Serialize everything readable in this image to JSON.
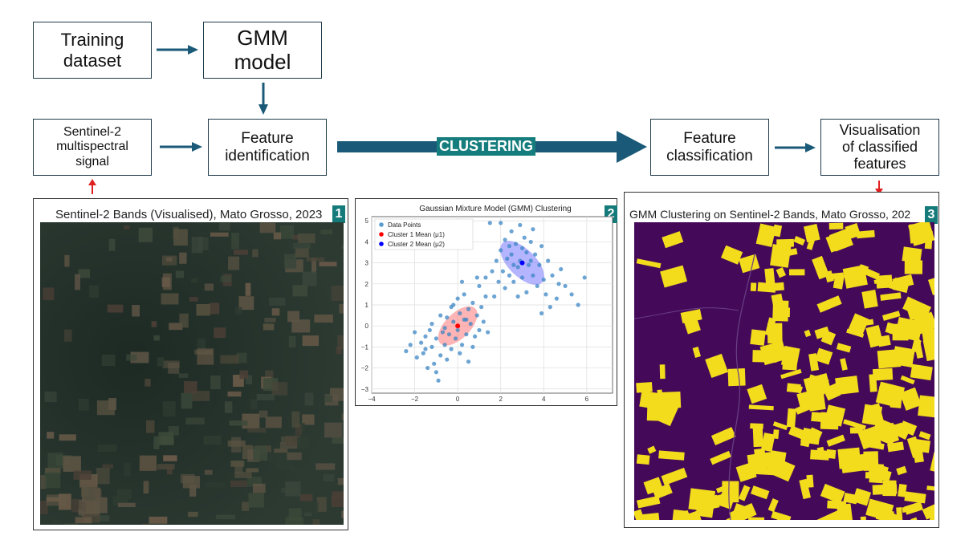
{
  "flow": {
    "training_dataset": "Training\ndataset",
    "gmm_model": "GMM\nmodel",
    "sentinel_signal": "Sentinel-2\nmultispectral\nsignal",
    "feature_identification": "Feature\nidentification",
    "clustering": "CLUSTERING",
    "feature_classification": "Feature\nclassification",
    "visualisation": "Visualisation\nof classified\nfeatures"
  },
  "panels": {
    "p1": {
      "title": "Sentinel-2 Bands (Visualised), Mato Grosso, 2023",
      "badge": "1"
    },
    "p2": {
      "title": "Gaussian Mixture Model (GMM) Clustering",
      "badge": "2"
    },
    "p3": {
      "title": "GMM Clustering on Sentinel-2 Bands, Mato Grosso, 202",
      "badge": "3"
    }
  },
  "colors": {
    "accent": "#1a5a78",
    "badge": "#147a7a",
    "red_arrow": "#e02020",
    "class_low": "#440a59",
    "class_high": "#f2dc1c"
  },
  "chart_data": {
    "type": "scatter",
    "title": "Gaussian Mixture Model (GMM) Clustering",
    "xlim": [
      -4,
      7.2
    ],
    "ylim": [
      -3.2,
      5.2
    ],
    "xticks": [
      -4,
      -2,
      0,
      2,
      4,
      6
    ],
    "yticks": [
      -3,
      -2,
      -1,
      0,
      1,
      2,
      3,
      4,
      5
    ],
    "grid": true,
    "legend_position": "top-left",
    "legend": [
      "Data Points",
      "Cluster 1 Mean (μ1)",
      "Cluster 2 Mean (μ2)"
    ],
    "means": [
      {
        "name": "Cluster 1 Mean (μ1)",
        "x": 0.0,
        "y": 0.0,
        "color": "#ff0000"
      },
      {
        "name": "Cluster 2 Mean (μ2)",
        "x": 3.0,
        "y": 3.0,
        "color": "#0000ff"
      }
    ],
    "ellipses": [
      {
        "cx": 0.0,
        "cy": 0.0,
        "rx": 1.15,
        "ry": 0.6,
        "angle": 45,
        "color": "#ff6b6b"
      },
      {
        "cx": 3.0,
        "cy": 3.0,
        "rx": 1.3,
        "ry": 0.65,
        "angle": -45,
        "color": "#6b6bff"
      }
    ],
    "points": [
      [
        -2.4,
        -1.2
      ],
      [
        -2.2,
        -0.9
      ],
      [
        -2.0,
        -0.3
      ],
      [
        -1.9,
        -1.5
      ],
      [
        -1.7,
        -0.8
      ],
      [
        -1.6,
        -1.3
      ],
      [
        -1.5,
        -0.5
      ],
      [
        -1.4,
        -2.0
      ],
      [
        -1.3,
        -0.2
      ],
      [
        -1.2,
        -1.0
      ],
      [
        -1.1,
        -1.8
      ],
      [
        -1.0,
        -0.6
      ],
      [
        -1.0,
        -2.2
      ],
      [
        -0.9,
        -2.6
      ],
      [
        -0.8,
        -1.4
      ],
      [
        -0.7,
        -0.3
      ],
      [
        -0.6,
        -0.9
      ],
      [
        -0.5,
        0.4
      ],
      [
        -0.5,
        -1.6
      ],
      [
        -0.4,
        -0.4
      ],
      [
        -0.3,
        0.9
      ],
      [
        -0.3,
        -1.1
      ],
      [
        -0.2,
        0.2
      ],
      [
        -0.1,
        -0.6
      ],
      [
        0.0,
        1.3
      ],
      [
        0.0,
        -0.2
      ],
      [
        0.1,
        0.6
      ],
      [
        0.1,
        -1.3
      ],
      [
        0.2,
        -0.9
      ],
      [
        0.3,
        0.3
      ],
      [
        0.3,
        1.5
      ],
      [
        0.4,
        -0.4
      ],
      [
        0.5,
        0.8
      ],
      [
        0.5,
        -1.7
      ],
      [
        0.6,
        0.1
      ],
      [
        0.7,
        1.1
      ],
      [
        0.8,
        -0.5
      ],
      [
        0.9,
        0.5
      ],
      [
        1.0,
        1.9
      ],
      [
        1.0,
        -0.2
      ],
      [
        1.2,
        0.2
      ],
      [
        1.3,
        1.4
      ],
      [
        1.4,
        -0.3
      ],
      [
        -0.8,
        0.5
      ],
      [
        -0.2,
        1.0
      ],
      [
        0.2,
        2.1
      ],
      [
        -1.2,
        0.1
      ],
      [
        -0.6,
        -0.1
      ],
      [
        0.7,
        -1.0
      ],
      [
        1.1,
        0.9
      ],
      [
        -1.5,
        -1.1
      ],
      [
        0.4,
        0.3
      ],
      [
        0.9,
        2.3
      ],
      [
        1.6,
        2.6
      ],
      [
        1.8,
        3.1
      ],
      [
        1.9,
        2.1
      ],
      [
        2.0,
        3.6
      ],
      [
        2.1,
        2.6
      ],
      [
        2.2,
        4.1
      ],
      [
        2.3,
        3.2
      ],
      [
        2.4,
        2.4
      ],
      [
        2.5,
        4.5
      ],
      [
        2.5,
        3.4
      ],
      [
        2.6,
        2.1
      ],
      [
        2.7,
        3.9
      ],
      [
        2.8,
        2.8
      ],
      [
        2.9,
        4.8
      ],
      [
        2.9,
        3.1
      ],
      [
        3.0,
        2.3
      ],
      [
        3.1,
        4.2
      ],
      [
        3.2,
        3.5
      ],
      [
        3.2,
        1.6
      ],
      [
        3.3,
        2.9
      ],
      [
        3.4,
        4.0
      ],
      [
        3.5,
        2.4
      ],
      [
        3.6,
        3.4
      ],
      [
        3.7,
        1.9
      ],
      [
        3.8,
        2.9
      ],
      [
        3.9,
        3.8
      ],
      [
        4.0,
        2.2
      ],
      [
        4.1,
        1.5
      ],
      [
        4.2,
        3.1
      ],
      [
        4.4,
        2.4
      ],
      [
        4.6,
        1.3
      ],
      [
        4.8,
        2.7
      ],
      [
        5.0,
        1.9
      ],
      [
        5.3,
        1.5
      ],
      [
        5.6,
        1.0
      ],
      [
        5.9,
        2.3
      ],
      [
        2.0,
        4.9
      ],
      [
        1.7,
        1.4
      ],
      [
        2.8,
        1.4
      ],
      [
        3.5,
        4.6
      ],
      [
        4.3,
        0.9
      ],
      [
        1.5,
        4.9
      ],
      [
        2.2,
        1.8
      ],
      [
        3.9,
        0.6
      ],
      [
        4.7,
        2.0
      ],
      [
        1.3,
        2.3
      ],
      [
        3.0,
        3.7
      ],
      [
        2.6,
        2.9
      ],
      [
        3.4,
        3.1
      ],
      [
        2.4,
        3.8
      ]
    ]
  }
}
